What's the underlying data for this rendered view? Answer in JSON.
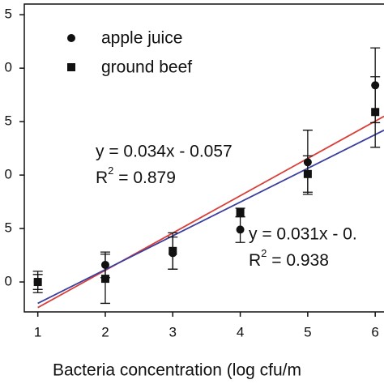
{
  "chart_data": {
    "type": "scatter",
    "xlabel": "Bacteria concentration (log cfu/m",
    "xlim": [
      0.8,
      6.13
    ],
    "ylim": [
      -0.028,
      0.26
    ],
    "xticks": [
      1,
      2,
      3,
      4,
      5,
      6
    ],
    "yticks": [
      0,
      {
        "value": 0.05,
        "label": "5"
      },
      {
        "value": 0.1,
        "label": "0"
      },
      {
        "value": 0.15,
        "label": "5"
      },
      {
        "value": 0.2,
        "label": "0"
      },
      {
        "value": 0.25,
        "label": "5"
      }
    ],
    "legend": "upper left",
    "series": [
      {
        "name": "apple juice",
        "marker": "circle",
        "color": "#111111",
        "x": [
          1,
          2,
          3,
          4,
          5,
          6
        ],
        "values": [
          0.0,
          0.016,
          0.027,
          0.049,
          0.112,
          0.184
        ],
        "errors": [
          0.01,
          0.012,
          0.015,
          0.012,
          0.03,
          0.035
        ]
      },
      {
        "name": "ground beef",
        "marker": "square",
        "color": "#111111",
        "x": [
          1,
          2,
          3,
          4,
          5,
          6
        ],
        "values": [
          0.0,
          0.003,
          0.029,
          0.065,
          0.101,
          0.159
        ],
        "errors": [
          0.007,
          0.023,
          0.017,
          0.004,
          0.017,
          0.033
        ]
      }
    ],
    "fits": [
      {
        "color": "#d9403a",
        "x": [
          1,
          6.13
        ],
        "y": [
          -0.024,
          0.155
        ]
      },
      {
        "color": "#3a3fa0",
        "x": [
          1,
          6.13
        ],
        "y": [
          -0.02,
          0.142
        ]
      }
    ],
    "annotations": [
      {
        "text": "y = 0.034x - 0.057",
        "r": "R",
        "sup": "2",
        "rest": " = 0.879"
      },
      {
        "text": "y = 0.031x - 0.",
        "r": "R",
        "sup": "2",
        "rest": " = 0.938"
      }
    ]
  }
}
